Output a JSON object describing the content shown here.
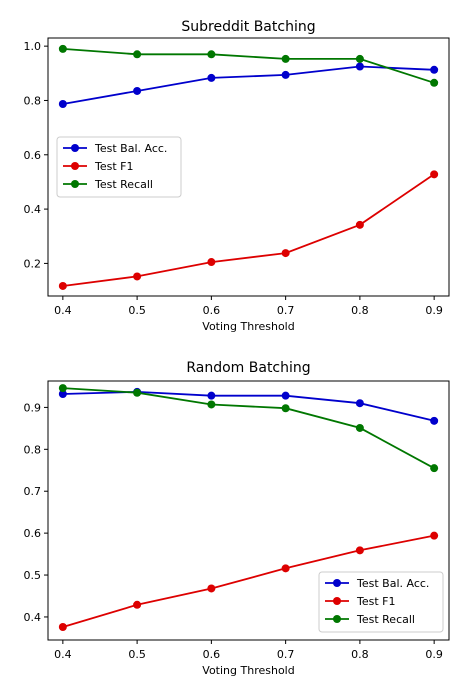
{
  "chart_data": [
    {
      "type": "line",
      "title": "Subreddit Batching",
      "xlabel": "Voting Threshold",
      "ylabel": "",
      "x": [
        0.4,
        0.5,
        0.6,
        0.7,
        0.8,
        0.9
      ],
      "xlim": [
        0.38,
        0.92
      ],
      "ylim": [
        0.08,
        1.03
      ],
      "xticks": [
        0.4,
        0.5,
        0.6,
        0.7,
        0.8,
        0.9
      ],
      "xtick_labels": [
        "0.4",
        "0.5",
        "0.6",
        "0.7",
        "0.8",
        "0.9"
      ],
      "yticks": [
        0.2,
        0.4,
        0.6,
        0.8,
        1.0
      ],
      "ytick_labels": [
        "0.2",
        "0.4",
        "0.6",
        "0.8",
        "1.0"
      ],
      "grid": false,
      "legend_position": "center-left",
      "series": [
        {
          "name": "Test Bal. Acc.",
          "color": "#0000cc",
          "values": [
            0.787,
            0.835,
            0.883,
            0.894,
            0.925,
            0.913
          ]
        },
        {
          "name": "Test F1",
          "color": "#dd0000",
          "values": [
            0.117,
            0.152,
            0.205,
            0.238,
            0.342,
            0.528
          ]
        },
        {
          "name": "Test Recall",
          "color": "#007700",
          "values": [
            0.99,
            0.97,
            0.97,
            0.953,
            0.953,
            0.865
          ]
        }
      ]
    },
    {
      "type": "line",
      "title": "Random Batching",
      "xlabel": "Voting Threshold",
      "ylabel": "",
      "x": [
        0.4,
        0.5,
        0.6,
        0.7,
        0.8,
        0.9
      ],
      "xlim": [
        0.38,
        0.92
      ],
      "ylim": [
        0.345,
        0.963
      ],
      "xticks": [
        0.4,
        0.5,
        0.6,
        0.7,
        0.8,
        0.9
      ],
      "xtick_labels": [
        "0.4",
        "0.5",
        "0.6",
        "0.7",
        "0.8",
        "0.9"
      ],
      "yticks": [
        0.4,
        0.5,
        0.6,
        0.7,
        0.8,
        0.9
      ],
      "ytick_labels": [
        "0.4",
        "0.5",
        "0.6",
        "0.7",
        "0.8",
        "0.9"
      ],
      "grid": false,
      "legend_position": "lower-right",
      "series": [
        {
          "name": "Test Bal. Acc.",
          "color": "#0000cc",
          "values": [
            0.932,
            0.937,
            0.928,
            0.928,
            0.91,
            0.868
          ]
        },
        {
          "name": "Test F1",
          "color": "#dd0000",
          "values": [
            0.376,
            0.429,
            0.468,
            0.516,
            0.559,
            0.594
          ]
        },
        {
          "name": "Test Recall",
          "color": "#007700",
          "values": [
            0.946,
            0.935,
            0.907,
            0.898,
            0.851,
            0.755
          ]
        }
      ]
    }
  ]
}
